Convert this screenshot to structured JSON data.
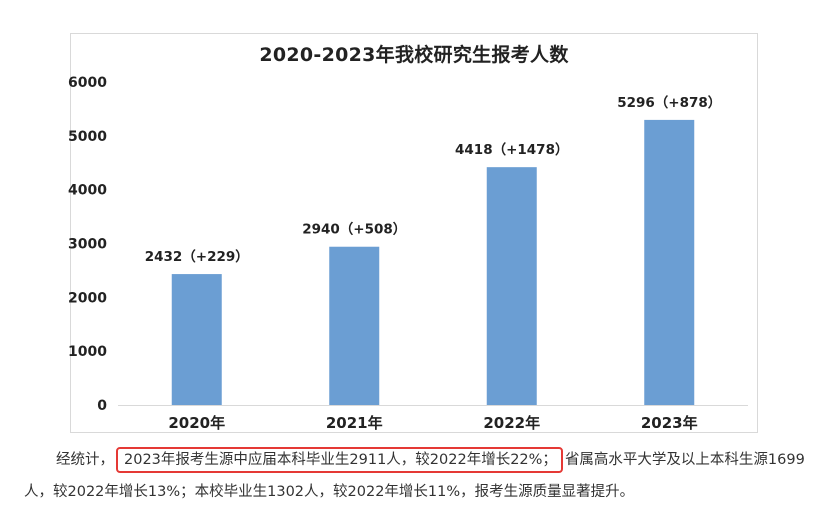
{
  "chart_data": {
    "type": "bar",
    "title": "2020-2023年我校研究生报考人数",
    "categories": [
      "2020年",
      "2021年",
      "2022年",
      "2023年"
    ],
    "values": [
      2432,
      2940,
      4418,
      5296
    ],
    "data_labels": [
      "2432（+229）",
      "2940（+508）",
      "4418（+1478）",
      "5296（+878）"
    ],
    "y_ticks": [
      "0",
      "1000",
      "2000",
      "3000",
      "4000",
      "5000",
      "6000"
    ],
    "ylim": [
      0,
      6000
    ],
    "bar_color": "#6b9ed3",
    "grid": false,
    "legend": "none"
  },
  "caption": {
    "prefix": "经统计，",
    "highlighted": "2023年报考生源中应届本科毕业生2911人，较2022年增长22%；",
    "suffix": "省属高水平大学及以上本科生源1699人，较2022年增长13%；本校毕业生1302人，较2022年增长11%，报考生源质量显著提升。",
    "highlight_color": "#e53935"
  }
}
